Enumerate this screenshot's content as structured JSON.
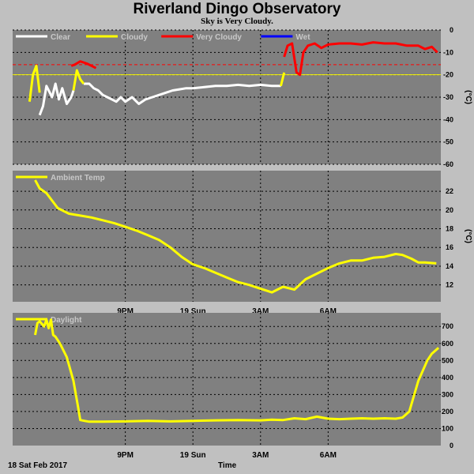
{
  "title": "Riverland Dingo Observatory",
  "subtitle": "Sky is Very Cloudy.",
  "date_label": "18 Sat Feb 2017",
  "xaxis_label": "Time",
  "colors": {
    "background": "#c0c0c0",
    "panel": "#808080",
    "clear": "#ffffff",
    "cloudy": "#ffff00",
    "very_cloudy": "#ff0000",
    "wet": "#0000ff",
    "threshold_line": "#ff0000",
    "cloudy_line": "#ffff00"
  },
  "chart_data": [
    {
      "type": "line",
      "panel": "sky",
      "legend": [
        {
          "name": "Clear",
          "color": "#ffffff"
        },
        {
          "name": "Cloudy",
          "color": "#ffff00"
        },
        {
          "name": "Very Cloudy",
          "color": "#ff0000"
        },
        {
          "name": "Wet",
          "color": "#0000ff"
        }
      ],
      "ylabel": "(°C)",
      "ylim": [
        -60,
        0
      ],
      "yticks": [
        0,
        -10,
        -20,
        -30,
        -40,
        -50,
        -60
      ],
      "thresholds": [
        {
          "value": -15.5,
          "color": "#ff0000",
          "style": "dashed"
        },
        {
          "value": -20,
          "color": "#ffff00",
          "style": "solid"
        }
      ],
      "xticks": [
        "9PM",
        "19 Sun",
        "3AM",
        "6AM"
      ],
      "series": [
        {
          "name": "Clear",
          "color": "#ffffff",
          "segments": [
            {
              "x": [
                17.2,
                17.35,
                17.5,
                17.75,
                17.9,
                18.05,
                18.2,
                18.4,
                18.6,
                18.7
              ],
              "y": [
                -38,
                -34,
                -25,
                -30,
                -24,
                -31,
                -26,
                -33,
                -30,
                -27
              ]
            },
            {
              "x": [
                19.15,
                19.4,
                19.6,
                19.8,
                20.0,
                20.2,
                20.4,
                20.6,
                20.8,
                21.0,
                21.3,
                21.6,
                21.9,
                22.2,
                22.5,
                22.8,
                23.1,
                23.4,
                23.7,
                24.0,
                24.5,
                25.0,
                25.5,
                26.0,
                26.5,
                27.0,
                27.5,
                27.9
              ],
              "y": [
                -24,
                -24,
                -26,
                -27,
                -29,
                -30,
                -31,
                -32,
                -30,
                -32,
                -30,
                -33,
                -31,
                -30,
                -29,
                -28,
                -27,
                -26.5,
                -26,
                -26,
                -25.5,
                -25,
                -25,
                -24.5,
                -25,
                -24.5,
                -25,
                -25
              ]
            }
          ]
        },
        {
          "name": "Cloudy",
          "color": "#ffff00",
          "segments": [
            {
              "x": [
                18.7,
                18.85,
                19.0,
                19.15
              ],
              "y": [
                -27,
                -18,
                -22,
                -24
              ]
            },
            {
              "x": [
                16.75,
                16.9,
                17.05,
                17.2
              ],
              "y": [
                -32,
                -20,
                -16,
                -28
              ]
            },
            {
              "x": [
                27.9,
                28.05
              ],
              "y": [
                -25,
                -19
              ]
            }
          ]
        },
        {
          "name": "Very Cloudy",
          "color": "#ff0000",
          "segments": [
            {
              "x": [
                18.6,
                18.75,
                19.0,
                19.3,
                19.5,
                19.7
              ],
              "y": [
                -16,
                -15.5,
                -14,
                -15,
                -16,
                -17
              ]
            },
            {
              "x": [
                28.05,
                28.2,
                28.4,
                28.6,
                28.75,
                28.9,
                29.1,
                29.4,
                29.7,
                30.0,
                30.5,
                31.0,
                31.5,
                32.0,
                32.5,
                33.0,
                33.5,
                34.0,
                34.3,
                34.6,
                34.85
              ],
              "y": [
                -12,
                -7,
                -6,
                -19,
                -20,
                -10,
                -7,
                -6,
                -8,
                -6.5,
                -6,
                -6,
                -6.5,
                -5.5,
                -6,
                -6,
                -7,
                -7,
                -8.5,
                -7.5,
                -10
              ]
            }
          ]
        }
      ]
    },
    {
      "type": "line",
      "panel": "ambient",
      "legend": [
        {
          "name": "Ambient Temp",
          "color": "#ffff00"
        }
      ],
      "ylabel": "(°C)",
      "ylim": [
        10.2,
        24.2
      ],
      "yticks": [
        12,
        14,
        16,
        18,
        20,
        22
      ],
      "xticks": [
        "9PM",
        "19 Sun",
        "3AM",
        "6AM"
      ],
      "series": [
        {
          "name": "Ambient Temp",
          "color": "#ffff00",
          "x": [
            17.0,
            17.2,
            17.5,
            18.0,
            18.5,
            19.0,
            19.5,
            20.0,
            20.5,
            21.0,
            21.5,
            22.0,
            22.5,
            23.0,
            23.5,
            24.0,
            24.5,
            25.0,
            25.5,
            26.0,
            26.5,
            27.0,
            27.5,
            28.0,
            28.5,
            29.0,
            29.5,
            30.0,
            30.5,
            31.0,
            31.5,
            32.0,
            32.5,
            33.0,
            33.3,
            33.7,
            34.0,
            34.3,
            34.8
          ],
          "y": [
            23.2,
            22.3,
            21.8,
            20.2,
            19.6,
            19.4,
            19.2,
            18.9,
            18.6,
            18.2,
            17.8,
            17.3,
            16.8,
            16.0,
            15.0,
            14.2,
            13.8,
            13.3,
            12.8,
            12.3,
            12.0,
            11.6,
            11.2,
            11.8,
            11.5,
            12.6,
            13.2,
            13.8,
            14.3,
            14.6,
            14.6,
            14.9,
            15.0,
            15.3,
            15.2,
            14.8,
            14.4,
            14.4,
            14.3
          ]
        }
      ]
    },
    {
      "type": "line",
      "panel": "daylight",
      "legend": [
        {
          "name": "Daylight",
          "color": "#ffff00"
        }
      ],
      "ylabel": "",
      "ylim": [
        0,
        780
      ],
      "yticks": [
        0,
        100,
        200,
        300,
        400,
        500,
        600,
        700
      ],
      "xticks": [
        "9PM",
        "19 Sun",
        "3AM",
        "6AM"
      ],
      "series": [
        {
          "name": "Daylight",
          "color": "#ffff00",
          "x": [
            17.0,
            17.1,
            17.2,
            17.4,
            17.5,
            17.6,
            17.7,
            17.8,
            17.9,
            18.1,
            18.4,
            18.7,
            18.9,
            19.0,
            19.2,
            19.4,
            20.0,
            21.0,
            22.0,
            23.0,
            24.0,
            25.0,
            26.0,
            27.0,
            27.5,
            28.0,
            28.5,
            29.0,
            29.5,
            30.0,
            30.5,
            31.0,
            31.5,
            32.0,
            32.5,
            33.0,
            33.3,
            33.6,
            33.8,
            34.0,
            34.2,
            34.4,
            34.6,
            34.9
          ],
          "y": [
            650,
            720,
            730,
            700,
            740,
            690,
            740,
            650,
            640,
            600,
            520,
            380,
            230,
            150,
            145,
            140,
            140,
            142,
            145,
            142,
            145,
            148,
            150,
            148,
            152,
            150,
            160,
            155,
            170,
            158,
            155,
            158,
            160,
            158,
            160,
            158,
            165,
            200,
            290,
            380,
            440,
            500,
            540,
            575
          ]
        }
      ]
    }
  ]
}
